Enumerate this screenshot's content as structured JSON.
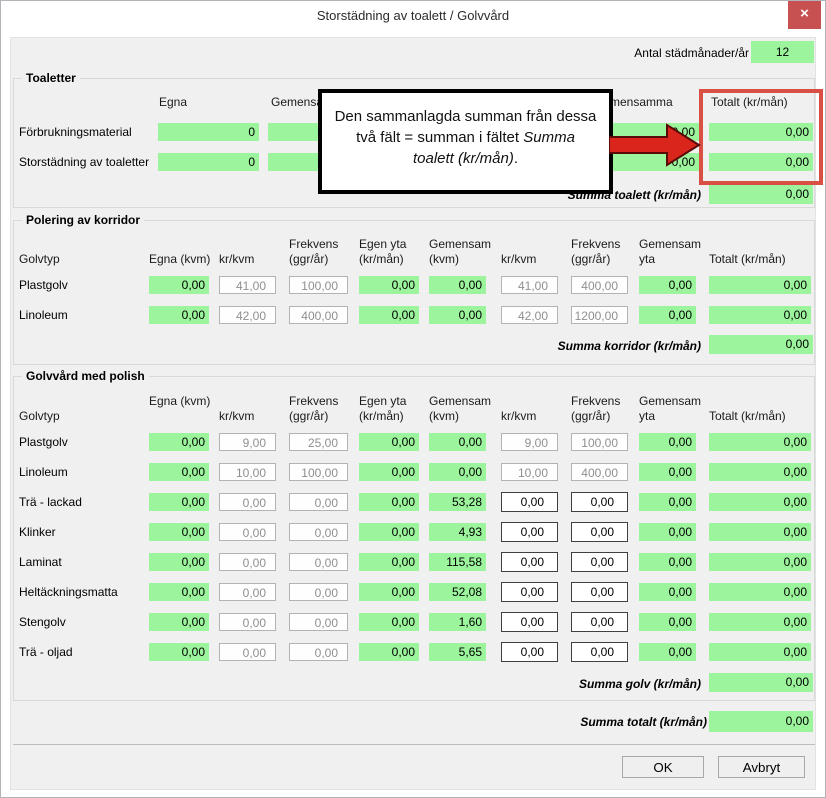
{
  "window": {
    "title": "Storstädning av toalett / Golvvård",
    "close": "×"
  },
  "topbar": {
    "antal_label": "Antal städmånader/år",
    "antal_value": "12"
  },
  "callout": {
    "line1": "Den sammanlagda summan från dessa",
    "line2_plain": "två fält = summan i fältet ",
    "line2_italic": "Summa",
    "line3_italic": "toalett (kr/mån)",
    "line3_plain": "."
  },
  "toaletter": {
    "title": "Toaletter",
    "columns": {
      "egna": "Egna",
      "gemensamma": "Gemensamma",
      "gemensamma2": "Gemensamma",
      "totalt": "Totalt (kr/mån)"
    },
    "rows": [
      {
        "label": "Förbrukningsmaterial",
        "egna": "0",
        "gemensamma": "",
        "gemensamma2": "0,00",
        "totalt": "0,00"
      },
      {
        "label": "Storstädning av toaletter",
        "egna": "0",
        "gemensamma": "",
        "gemensamma2": "0,00",
        "totalt": "0,00"
      }
    ],
    "summa_label": "Summa toalett (kr/mån)",
    "summa_value": "0,00"
  },
  "korridor": {
    "title": "Polering av korridor",
    "columns": {
      "golvtyp": "Golvtyp",
      "egna": "Egna (kvm)",
      "kr1": "kr/kvm",
      "frek1": [
        "Frekvens",
        "(ggr/år)"
      ],
      "egen": [
        "Egen yta",
        "(kr/mån)"
      ],
      "gem": [
        "Gemensam",
        "(kvm)"
      ],
      "kr2": "kr/kvm",
      "frek2": [
        "Frekvens",
        "(ggr/år)"
      ],
      "gemyta": [
        "Gemensam",
        "yta"
      ],
      "totalt": "Totalt (kr/mån)"
    },
    "rows": [
      {
        "label": "Plastgolv",
        "egna": "0,00",
        "kr1": "41,00",
        "frek1": "100,00",
        "egen": "0,00",
        "gem": "0,00",
        "kr2": "41,00",
        "frek2": "400,00",
        "gemyta": "0,00",
        "totalt": "0,00",
        "editable": false
      },
      {
        "label": "Linoleum",
        "egna": "0,00",
        "kr1": "42,00",
        "frek1": "400,00",
        "egen": "0,00",
        "gem": "0,00",
        "kr2": "42,00",
        "frek2": "1200,00",
        "gemyta": "0,00",
        "totalt": "0,00",
        "editable": false
      }
    ],
    "summa_label": "Summa korridor (kr/mån)",
    "summa_value": "0,00"
  },
  "golvvard": {
    "title": "Golvvård med polish",
    "columns": {
      "golvtyp": "Golvtyp",
      "egna": "Egna (kvm)",
      "kr1": "kr/kvm",
      "frek1": [
        "Frekvens",
        "(ggr/år)"
      ],
      "egen": [
        "Egen yta",
        "(kr/mån)"
      ],
      "gem": [
        "Gemensam",
        "(kvm)"
      ],
      "kr2": "kr/kvm",
      "frek2": [
        "Frekvens",
        "(ggr/år)"
      ],
      "gemyta": [
        "Gemensam",
        "yta"
      ],
      "totalt": "Totalt (kr/mån)"
    },
    "rows": [
      {
        "label": "Plastgolv",
        "egna": "0,00",
        "kr1": "9,00",
        "frek1": "25,00",
        "egen": "0,00",
        "gem": "0,00",
        "kr2": "9,00",
        "frek2": "100,00",
        "gemyta": "0,00",
        "totalt": "0,00",
        "editable": false
      },
      {
        "label": "Linoleum",
        "egna": "0,00",
        "kr1": "10,00",
        "frek1": "100,00",
        "egen": "0,00",
        "gem": "0,00",
        "kr2": "10,00",
        "frek2": "400,00",
        "gemyta": "0,00",
        "totalt": "0,00",
        "editable": false
      },
      {
        "label": "Trä - lackad",
        "egna": "0,00",
        "kr1": "0,00",
        "frek1": "0,00",
        "egen": "0,00",
        "gem": "53,28",
        "kr2": "0,00",
        "frek2": "0,00",
        "gemyta": "0,00",
        "totalt": "0,00",
        "editable": true
      },
      {
        "label": "Klinker",
        "egna": "0,00",
        "kr1": "0,00",
        "frek1": "0,00",
        "egen": "0,00",
        "gem": "4,93",
        "kr2": "0,00",
        "frek2": "0,00",
        "gemyta": "0,00",
        "totalt": "0,00",
        "editable": true
      },
      {
        "label": "Laminat",
        "egna": "0,00",
        "kr1": "0,00",
        "frek1": "0,00",
        "egen": "0,00",
        "gem": "115,58",
        "kr2": "0,00",
        "frek2": "0,00",
        "gemyta": "0,00",
        "totalt": "0,00",
        "editable": true
      },
      {
        "label": "Heltäckningsmatta",
        "egna": "0,00",
        "kr1": "0,00",
        "frek1": "0,00",
        "egen": "0,00",
        "gem": "52,08",
        "kr2": "0,00",
        "frek2": "0,00",
        "gemyta": "0,00",
        "totalt": "0,00",
        "editable": true
      },
      {
        "label": "Stengolv",
        "egna": "0,00",
        "kr1": "0,00",
        "frek1": "0,00",
        "egen": "0,00",
        "gem": "1,60",
        "kr2": "0,00",
        "frek2": "0,00",
        "gemyta": "0,00",
        "totalt": "0,00",
        "editable": true
      },
      {
        "label": "Trä - oljad",
        "egna": "0,00",
        "kr1": "0,00",
        "frek1": "0,00",
        "egen": "0,00",
        "gem": "5,65",
        "kr2": "0,00",
        "frek2": "0,00",
        "gemyta": "0,00",
        "totalt": "0,00",
        "editable": true
      }
    ],
    "summa_label": "Summa golv (kr/mån)",
    "summa_value": "0,00"
  },
  "totals": {
    "summa_totalt_label": "Summa totalt (kr/mån)",
    "summa_totalt_value": "0,00"
  },
  "buttons": {
    "ok": "OK",
    "cancel": "Avbryt"
  },
  "colors": {
    "field_green": "#9cf49c",
    "highlight_red": "#d94f43",
    "arrow_red": "#da251d",
    "close_red": "#c75050"
  }
}
